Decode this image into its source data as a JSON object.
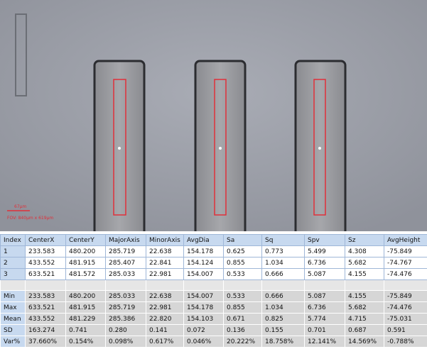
{
  "image": {
    "scale_label": "67μm",
    "fov_label": "FOV: 840μm x 619μm"
  },
  "table": {
    "header": [
      "Index",
      "CenterX",
      "CenterY",
      "MajorAxis",
      "MinorAxis",
      "AvgDia",
      "Sa",
      "Sq",
      "Spv",
      "Sz",
      "AvgHeight"
    ],
    "rows": [
      [
        "1",
        "233.583",
        "480.200",
        "285.719",
        "22.638",
        "154.178",
        "0.625",
        "0.773",
        "5.499",
        "4.308",
        "-75.849"
      ],
      [
        "2",
        "433.552",
        "481.915",
        "285.407",
        "22.841",
        "154.124",
        "0.855",
        "1.034",
        "6.736",
        "5.682",
        "-74.767"
      ],
      [
        "3",
        "633.521",
        "481.572",
        "285.033",
        "22.981",
        "154.007",
        "0.533",
        "0.666",
        "5.087",
        "4.155",
        "-74.476"
      ]
    ],
    "summary": [
      [
        "Min",
        "233.583",
        "480.200",
        "285.033",
        "22.638",
        "154.007",
        "0.533",
        "0.666",
        "5.087",
        "4.155",
        "-75.849"
      ],
      [
        "Max",
        "633.521",
        "481.915",
        "285.719",
        "22.981",
        "154.178",
        "0.855",
        "1.034",
        "6.736",
        "5.682",
        "-74.476"
      ],
      [
        "Mean",
        "433.552",
        "481.229",
        "285.386",
        "22.820",
        "154.103",
        "0.671",
        "0.825",
        "5.774",
        "4.715",
        "-75.031"
      ],
      [
        "SD",
        "163.274",
        "0.741",
        "0.280",
        "0.141",
        "0.072",
        "0.136",
        "0.155",
        "0.701",
        "0.687",
        "0.591"
      ],
      [
        "Var%",
        "37.660%",
        "0.154%",
        "0.098%",
        "0.617%",
        "0.046%",
        "20.222%",
        "18.758%",
        "12.141%",
        "14.569%",
        "-0.788%"
      ]
    ]
  }
}
